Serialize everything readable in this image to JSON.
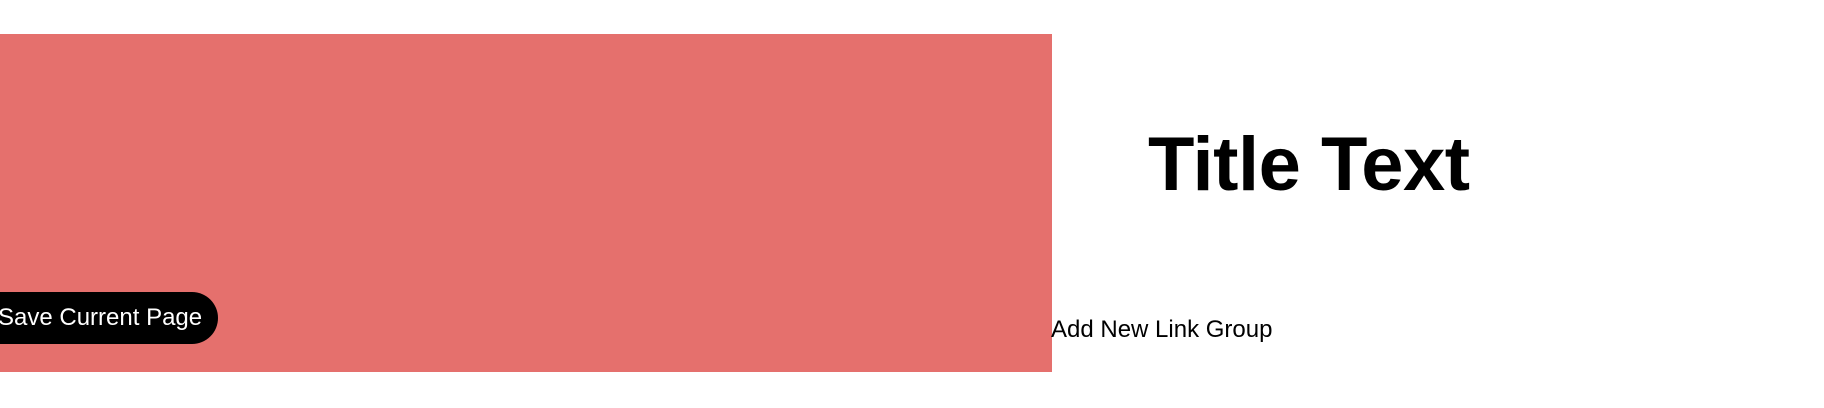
{
  "colors": {
    "hero_background": "#e5706d",
    "page_background": "#ffffff",
    "button_background": "#000000",
    "button_text": "#ffffff",
    "text": "#000000"
  },
  "hero": {
    "save_button_label": "Save Current Page"
  },
  "header": {
    "title": "Title Text"
  },
  "links": {
    "add_group_label": "Add New Link Group"
  }
}
